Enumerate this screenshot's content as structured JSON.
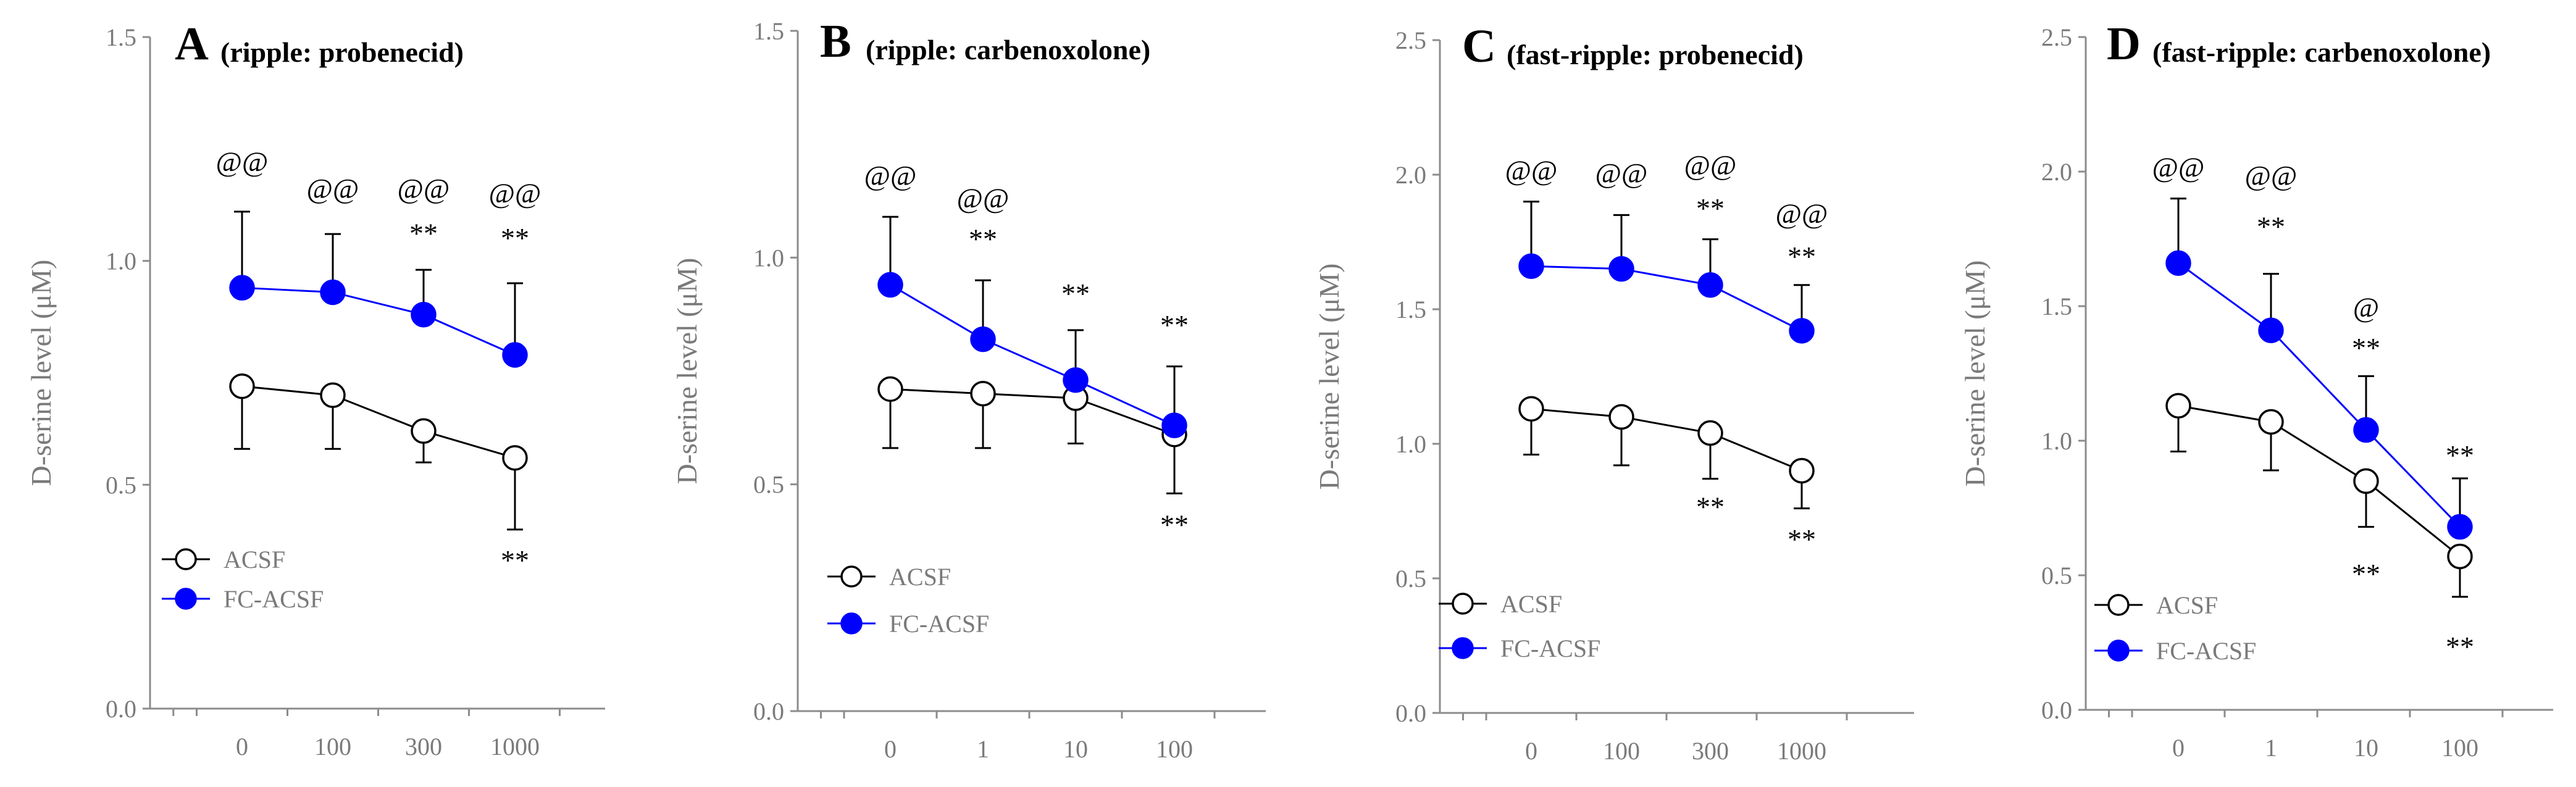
{
  "chart_data": [
    {
      "type": "line",
      "panel": "A",
      "title": "A",
      "subtitle": "(ripple: probenecid)",
      "ylabel": "D-serine  level (μM)",
      "ylim": [
        0,
        1.5
      ],
      "yticks": [
        0,
        0.5,
        1.0,
        1.5
      ],
      "yticklabels": [
        "0.0",
        "0.5",
        "1.0",
        "1.5"
      ],
      "categories": [
        "0",
        "100",
        "300",
        "1000"
      ],
      "series": [
        {
          "name": "ACSF",
          "color": "#000000",
          "fill": "#ffffff",
          "values": [
            0.72,
            0.7,
            0.62,
            0.56
          ],
          "err": [
            0.14,
            0.12,
            0.07,
            0.16
          ]
        },
        {
          "name": "FC-ACSF",
          "color": "#0000ff",
          "fill": "#0000ff",
          "values": [
            0.94,
            0.93,
            0.88,
            0.79
          ],
          "err": [
            0.17,
            0.13,
            0.1,
            0.16
          ]
        }
      ],
      "annotations": [
        {
          "text": "@@",
          "x": 0,
          "y": 1.2
        },
        {
          "text": "@@",
          "x": 1,
          "y": 1.14
        },
        {
          "text": "@@",
          "x": 2,
          "y": 1.14
        },
        {
          "text": "**",
          "x": 2,
          "y": 1.04
        },
        {
          "text": "@@",
          "x": 3,
          "y": 1.13
        },
        {
          "text": "**",
          "x": 3,
          "y": 1.03
        },
        {
          "text": "**",
          "x": 3,
          "y": 0.31
        }
      ]
    },
    {
      "type": "line",
      "panel": "B",
      "title": "B",
      "subtitle": "(ripple: carbenoxolone)",
      "ylabel": "D-serine  level (μM)",
      "ylim": [
        0,
        1.5
      ],
      "yticks": [
        0,
        0.5,
        1.0,
        1.5
      ],
      "yticklabels": [
        "0.0",
        "0.5",
        "1.0",
        "1.5"
      ],
      "categories": [
        "0",
        "1",
        "10",
        "100"
      ],
      "series": [
        {
          "name": "ACSF",
          "color": "#000000",
          "fill": "#ffffff",
          "values": [
            0.71,
            0.7,
            0.69,
            0.61
          ],
          "err": [
            0.13,
            0.12,
            0.1,
            0.13
          ]
        },
        {
          "name": "FC-ACSF",
          "color": "#0000ff",
          "fill": "#0000ff",
          "values": [
            0.94,
            0.82,
            0.73,
            0.63
          ],
          "err": [
            0.15,
            0.13,
            0.11,
            0.13
          ]
        }
      ],
      "annotations": [
        {
          "text": "@@",
          "x": 0,
          "y": 1.16
        },
        {
          "text": "@@",
          "x": 1,
          "y": 1.11
        },
        {
          "text": "**",
          "x": 1,
          "y": 1.02
        },
        {
          "text": "**",
          "x": 2,
          "y": 0.9
        },
        {
          "text": "**",
          "x": 3,
          "y": 0.83
        },
        {
          "text": "**",
          "x": 3,
          "y": 0.39
        }
      ]
    },
    {
      "type": "line",
      "panel": "C",
      "title": "C",
      "subtitle": "(fast-ripple: probenecid)",
      "ylabel": "D-serine  level (μM)",
      "ylim": [
        0,
        2.5
      ],
      "yticks": [
        0,
        0.5,
        1.0,
        1.5,
        2.0,
        2.5
      ],
      "yticklabels": [
        "0.0",
        "0.5",
        "1.0",
        "1.5",
        "2.0",
        "2.5"
      ],
      "categories": [
        "0",
        "100",
        "300",
        "1000"
      ],
      "series": [
        {
          "name": "ACSF",
          "color": "#000000",
          "fill": "#ffffff",
          "values": [
            1.13,
            1.1,
            1.04,
            0.9
          ],
          "err": [
            0.17,
            0.18,
            0.17,
            0.14
          ]
        },
        {
          "name": "FC-ACSF",
          "color": "#0000ff",
          "fill": "#0000ff",
          "values": [
            1.66,
            1.65,
            1.59,
            1.42
          ],
          "err": [
            0.24,
            0.2,
            0.17,
            0.17
          ]
        }
      ],
      "annotations": [
        {
          "text": "@@",
          "x": 0,
          "y": 1.98
        },
        {
          "text": "@@",
          "x": 1,
          "y": 1.97
        },
        {
          "text": "@@",
          "x": 2,
          "y": 2.0
        },
        {
          "text": "**",
          "x": 2,
          "y": 1.84
        },
        {
          "text": "@@",
          "x": 3,
          "y": 1.82
        },
        {
          "text": "**",
          "x": 3,
          "y": 1.66
        },
        {
          "text": "**",
          "x": 2,
          "y": 0.73
        },
        {
          "text": "**",
          "x": 3,
          "y": 0.61
        }
      ]
    },
    {
      "type": "line",
      "panel": "D",
      "title": "D",
      "subtitle": "(fast-ripple: carbenoxolone)",
      "ylabel": "D-serine  level (μM)",
      "ylim": [
        0,
        2.5
      ],
      "yticks": [
        0,
        0.5,
        1.0,
        1.5,
        2.0,
        2.5
      ],
      "yticklabels": [
        "0.0",
        "0.5",
        "1.0",
        "1.5",
        "2.0",
        "2.5"
      ],
      "categories": [
        "0",
        "1",
        "10",
        "100"
      ],
      "series": [
        {
          "name": "ACSF",
          "color": "#000000",
          "fill": "#ffffff",
          "values": [
            1.13,
            1.07,
            0.85,
            0.57
          ],
          "err": [
            0.17,
            0.18,
            0.17,
            0.15
          ]
        },
        {
          "name": "FC-ACSF",
          "color": "#0000ff",
          "fill": "#0000ff",
          "values": [
            1.66,
            1.41,
            1.04,
            0.68
          ],
          "err": [
            0.24,
            0.21,
            0.2,
            0.18
          ]
        }
      ],
      "annotations": [
        {
          "text": "@@",
          "x": 0,
          "y": 1.98
        },
        {
          "text": "@@",
          "x": 1,
          "y": 1.95
        },
        {
          "text": "**",
          "x": 1,
          "y": 1.76
        },
        {
          "text": "@",
          "x": 2,
          "y": 1.46
        },
        {
          "text": "**",
          "x": 2,
          "y": 1.31
        },
        {
          "text": "**",
          "x": 3,
          "y": 0.91
        },
        {
          "text": "**",
          "x": 2,
          "y": 0.47
        },
        {
          "text": "**",
          "x": 3,
          "y": 0.2
        }
      ]
    }
  ]
}
